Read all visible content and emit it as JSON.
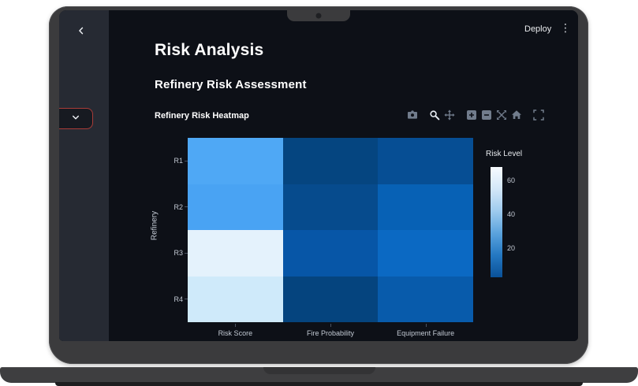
{
  "topbar": {
    "back_icon": "chevron-left",
    "deploy_label": "Deploy",
    "menu_icon": "kebab-menu"
  },
  "sidebar": {
    "collapse_icon": "chevron-down"
  },
  "page": {
    "title": "Risk Analysis",
    "subtitle": "Refinery Risk Assessment"
  },
  "chart": {
    "title": "Refinery Risk Heatmap",
    "toolbar_icons": [
      "camera",
      "zoom",
      "pan",
      "zoom-in",
      "zoom-out",
      "autoscale",
      "reset-home",
      "fullscreen"
    ],
    "toolbar_active": "zoom"
  },
  "chart_data": {
    "type": "heatmap",
    "title": "Refinery Risk Heatmap",
    "x_categories": [
      "Risk Score",
      "Fire Probability",
      "Equipment Failure"
    ],
    "y_categories": [
      "R1",
      "R2",
      "R3",
      "R4"
    ],
    "xlabel": "",
    "ylabel": "Refinery",
    "values": [
      [
        38,
        5,
        12
      ],
      [
        36,
        8,
        20
      ],
      [
        68,
        15,
        24
      ],
      [
        58,
        3,
        17
      ]
    ],
    "values_note": "rows = R1..R4, cols = Risk Score / Fire Probability / Equipment Failure; estimated from color scale",
    "cell_colors": [
      [
        "#4fa8f5",
        "#054580",
        "#064e94"
      ],
      [
        "#49a3f3",
        "#064b8d",
        "#0761b5"
      ],
      [
        "#e4f2fc",
        "#0756a7",
        "#0b69c3"
      ],
      [
        "#cfeafa",
        "#05447e",
        "#085bab"
      ]
    ],
    "colorscale": "Blues reversed (light = high risk)",
    "colorbar": {
      "title": "Risk Level",
      "min": 3,
      "max": 68,
      "ticks": [
        60,
        40,
        20
      ],
      "gradient_top_to_bottom": [
        "#f7fbff",
        "#d3e7f8",
        "#9ecbee",
        "#5ba3dd",
        "#2478c2",
        "#0a5198"
      ]
    },
    "legend_position": "right",
    "grid": false
  },
  "colors": {
    "app_background": "#0d1017",
    "sidebar_background": "#262a33",
    "accent_red_border": "#a93c38",
    "text_primary": "#ffffff",
    "axis_text": "#c3cad4",
    "toolbar_icon_gray": "#717c8c",
    "toolbar_icon_active": "#e8edf4",
    "laptop_bezel": "#3b3b3d"
  }
}
